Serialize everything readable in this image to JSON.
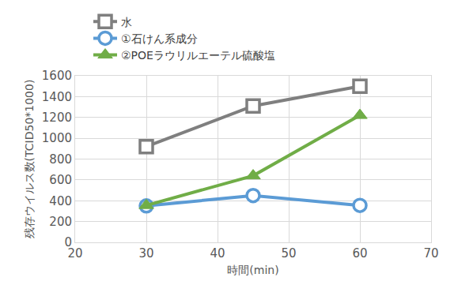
{
  "chart_data": {
    "type": "line",
    "x_label": "時間(min)",
    "y_label": "残存ウイルス数(TCID50*1000)",
    "x": [
      30,
      45,
      60
    ],
    "series": [
      {
        "name": "水",
        "color": "#7f7f7f",
        "marker": "square-open",
        "line_style": "solid",
        "values": [
          920,
          1310,
          1500
        ]
      },
      {
        "name": "①石けん系成分",
        "color": "#5b9bd5",
        "marker": "circle-open",
        "line_style": "solid",
        "values": [
          350,
          450,
          355
        ]
      },
      {
        "name": "②POEラウリルエーテル硫酸塩",
        "color": "#70ad47",
        "marker": "triangle-up",
        "line_style": "solid",
        "values": [
          355,
          640,
          1220
        ]
      }
    ],
    "xlim": [
      20,
      70
    ],
    "xticks": [
      20,
      30,
      40,
      50,
      60,
      70
    ],
    "ylim": [
      0,
      1600
    ],
    "yticks": [
      0,
      200,
      400,
      600,
      800,
      1000,
      1200,
      1400,
      1600
    ],
    "grid": true,
    "legend": "top-left"
  }
}
